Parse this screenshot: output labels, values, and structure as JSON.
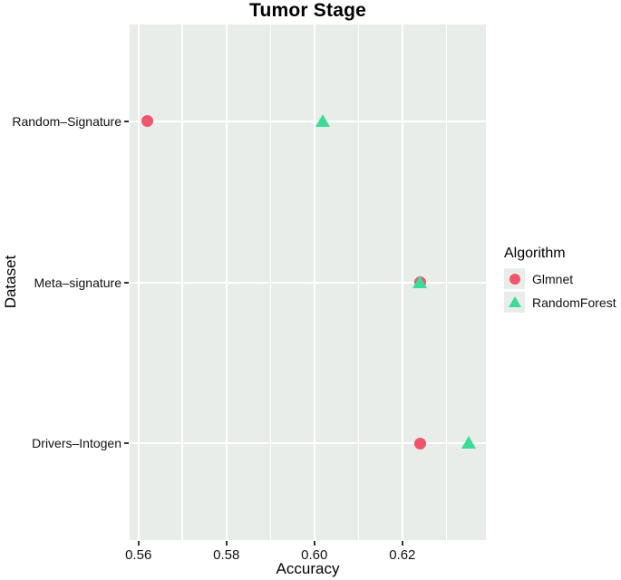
{
  "title": "Tumor Stage",
  "colors": {
    "panel_bg": "#e8edea",
    "grid": "#ffffff",
    "legend_key_bg": "#e8edea",
    "glmnet": "#f0556e",
    "random_forest": "#3cdb98",
    "tick": "#333333",
    "text": "#111111"
  },
  "axes": {
    "x_title": "Accuracy",
    "y_title": "Dataset"
  },
  "legend": {
    "title": "Algorithm",
    "items": [
      {
        "label": "Glmnet",
        "marker": "circle",
        "color": "#f0556e"
      },
      {
        "label": "RandomForest",
        "marker": "triangle",
        "color": "#3cdb98"
      }
    ]
  },
  "chart_data": {
    "type": "scatter",
    "title": "Tumor Stage",
    "xlabel": "Accuracy",
    "ylabel": "Dataset",
    "xlim": [
      0.558,
      0.639
    ],
    "x_major_ticks": [
      0.56,
      0.58,
      0.6,
      0.62
    ],
    "x_tick_labels": [
      "0.56",
      "0.58",
      "0.60",
      "0.62"
    ],
    "x_minor_ticks": [
      0.57,
      0.59,
      0.61,
      0.63
    ],
    "categories": [
      "Random–Signature",
      "Meta–signature",
      "Drivers–Intogen"
    ],
    "grid": true,
    "legend_position": "right",
    "series": [
      {
        "name": "Glmnet",
        "marker": "circle",
        "color": "#f0556e",
        "values": [
          0.562,
          0.624,
          0.624
        ]
      },
      {
        "name": "RandomForest",
        "marker": "triangle",
        "color": "#3cdb98",
        "values": [
          0.602,
          0.624,
          0.635
        ]
      }
    ]
  }
}
